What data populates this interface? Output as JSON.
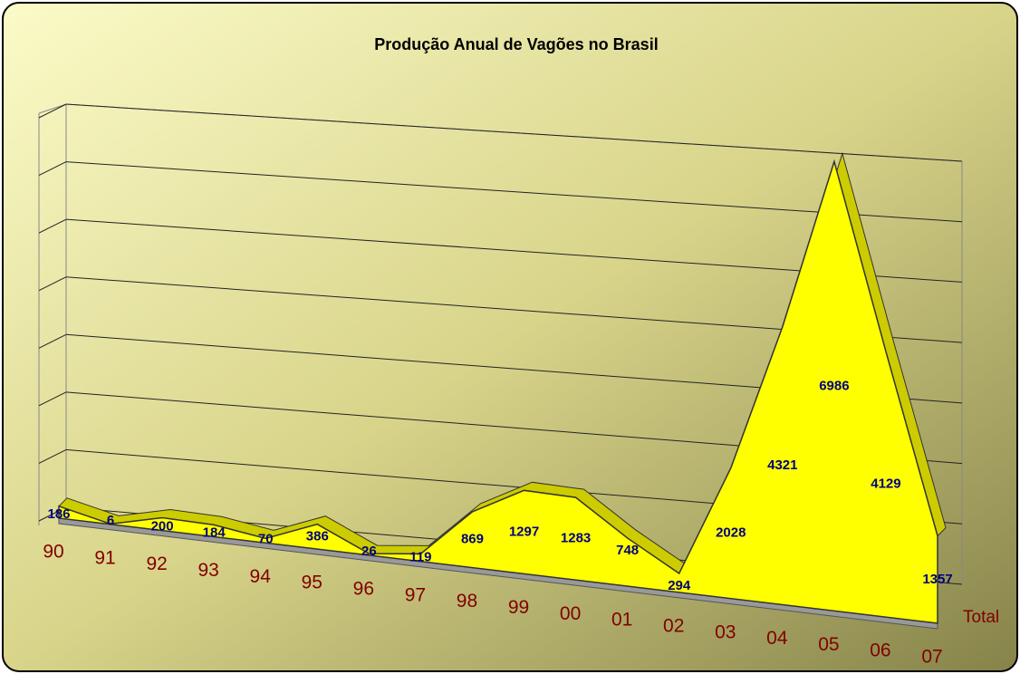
{
  "chart_data": {
    "type": "area3d",
    "title": "Produção Anual de Vagões no Brasil",
    "categories": [
      "90",
      "91",
      "92",
      "93",
      "94",
      "95",
      "96",
      "97",
      "98",
      "99",
      "00",
      "01",
      "02",
      "03",
      "04",
      "05",
      "06",
      "07"
    ],
    "series": [
      {
        "name": "Total",
        "color": "#ffff00",
        "values": [
          186,
          6,
          200,
          184,
          70,
          386,
          26,
          119,
          869,
          1297,
          1283,
          748,
          294,
          2028,
          4321,
          6986,
          4129,
          1357
        ]
      }
    ],
    "ylim": [
      0,
      7000
    ],
    "yticks": [
      0,
      1000,
      2000,
      3000,
      4000,
      5000,
      6000,
      7000
    ],
    "grid": true
  }
}
